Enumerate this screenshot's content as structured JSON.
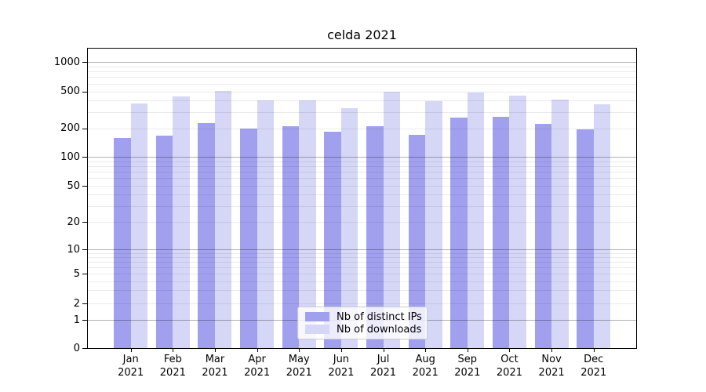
{
  "chart_data": {
    "type": "bar",
    "title": "celda 2021",
    "categories": [
      "Jan\n2021",
      "Feb\n2021",
      "Mar\n2021",
      "Apr\n2021",
      "May\n2021",
      "Jun\n2021",
      "Jul\n2021",
      "Aug\n2021",
      "Sep\n2021",
      "Oct\n2021",
      "Nov\n2021",
      "Dec\n2021"
    ],
    "series": [
      {
        "name": "Nb of distinct IPs",
        "color": "#a0a0ee",
        "values": [
          159,
          169,
          227,
          198,
          211,
          185,
          212,
          172,
          260,
          265,
          225,
          197
        ]
      },
      {
        "name": "Nb of downloads",
        "color": "#d6d6f7",
        "values": [
          369,
          445,
          505,
          400,
          402,
          328,
          494,
          391,
          490,
          448,
          411,
          364
        ]
      }
    ],
    "xlabel": "",
    "ylabel": "",
    "yscale": "symlog",
    "yticks": [
      0,
      1,
      2,
      5,
      10,
      20,
      50,
      100,
      200,
      500,
      1000
    ],
    "minor_yticks": [
      3,
      4,
      6,
      7,
      8,
      9,
      30,
      40,
      60,
      70,
      80,
      90,
      300,
      400,
      600,
      700,
      800,
      900
    ],
    "major_grid_at": [
      1,
      10,
      100,
      1000
    ],
    "ylim": [
      0,
      1370
    ],
    "grid": true,
    "legend_position": "lower center"
  },
  "colors": {
    "bar_distinct_ips": "#a0a0ee",
    "bar_downloads": "#d6d6f7",
    "spine": "#000000",
    "grid_minor": "rgba(0,0,0,0.08)",
    "grid_major": "rgba(0,0,0,0.30)"
  }
}
